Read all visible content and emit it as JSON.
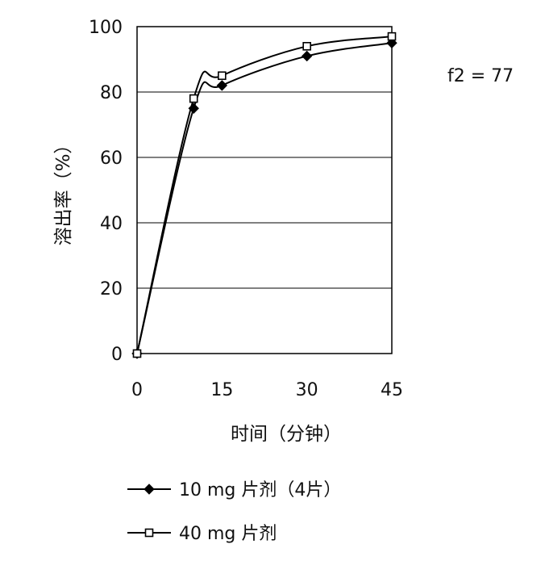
{
  "chart_data": {
    "type": "line",
    "title": "",
    "xlabel": "时间（分钟）",
    "ylabel": "溶出率（%）",
    "x_ticks": [
      0,
      15,
      30,
      45
    ],
    "y_ticks": [
      0,
      20,
      40,
      60,
      80,
      100
    ],
    "xlim": [
      0,
      45
    ],
    "ylim": [
      0,
      100
    ],
    "grid": "horizontal",
    "legend_position": "bottom",
    "annotation": "f2 = 77",
    "series": [
      {
        "name": "10 mg 片剂（4片）",
        "marker": "diamond-filled",
        "color": "#000000",
        "x": [
          0,
          10,
          15,
          30,
          45
        ],
        "y": [
          0,
          75,
          82,
          91,
          95
        ]
      },
      {
        "name": "40 mg 片剂",
        "marker": "square-open",
        "color": "#000000",
        "x": [
          0,
          10,
          15,
          30,
          45
        ],
        "y": [
          0,
          78,
          85,
          94,
          97
        ]
      }
    ]
  }
}
